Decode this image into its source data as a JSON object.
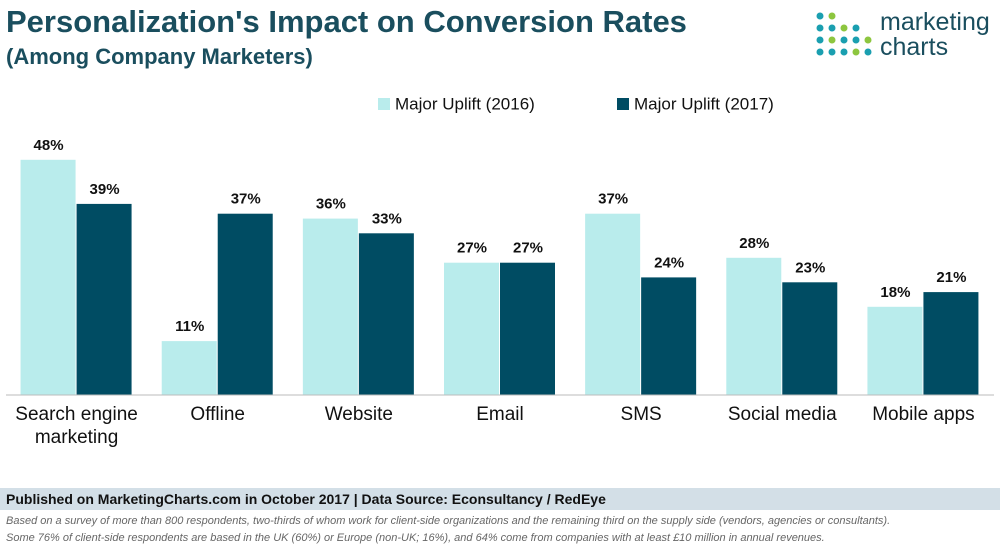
{
  "chart_data": {
    "type": "bar",
    "title": "Personalization's Impact on Conversion Rates",
    "subtitle": "(Among Company Marketers)",
    "categories": [
      "Search engine marketing",
      "Offline",
      "Website",
      "Email",
      "SMS",
      "Social media",
      "Mobile apps"
    ],
    "series": [
      {
        "name": "Major Uplift (2016)",
        "color": "#b9ecec",
        "values": [
          48,
          11,
          36,
          27,
          37,
          28,
          18
        ],
        "value_labels": [
          "48%",
          "11%",
          "36%",
          "27%",
          "37%",
          "28%",
          "18%"
        ]
      },
      {
        "name": "Major Uplift (2017)",
        "color": "#004c63",
        "values": [
          39,
          37,
          33,
          27,
          24,
          23,
          21
        ],
        "value_labels": [
          "39%",
          "37%",
          "33%",
          "27%",
          "24%",
          "23%",
          "21%"
        ]
      }
    ],
    "ylim": [
      0,
      50
    ],
    "grid": false,
    "legend": "top"
  },
  "logo": [
    "marketing",
    "charts"
  ],
  "footer": {
    "source": "Published on MarketingCharts.com in October 2017 | Data Source: Econsultancy / RedEye",
    "notes": [
      "Based on a survey of more than 800 respondents, two-thirds of whom work for client-side organizations and the remaining third on the supply side (vendors, agencies or consultants).",
      "Some 76% of client-side respondents are based in the UK (60%) or Europe (non-UK; 16%), and 64% come from companies with at least £10 million in annual revenues."
    ]
  }
}
